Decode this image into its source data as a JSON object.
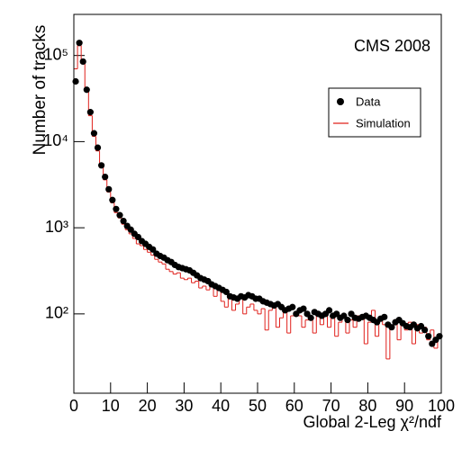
{
  "chart_data": {
    "type": "histogram",
    "ylabel": "Number of tracks",
    "xlabel": "Global 2-Leg χ²/ndf",
    "annotation": "CMS 2008",
    "log_y": true,
    "xlim": [
      0,
      100
    ],
    "ylim": [
      12,
      300000
    ],
    "xticks": [
      0,
      10,
      20,
      30,
      40,
      50,
      60,
      70,
      80,
      90,
      100
    ],
    "yticks": [
      {
        "value": 100,
        "label": "10²"
      },
      {
        "value": 1000,
        "label": "10³"
      },
      {
        "value": 10000,
        "label": "10⁴"
      },
      {
        "value": 100000,
        "label": "10⁵"
      }
    ],
    "bins": [
      0,
      1,
      2,
      3,
      4,
      5,
      6,
      7,
      8,
      9,
      10,
      11,
      12,
      13,
      14,
      15,
      16,
      17,
      18,
      19,
      20,
      21,
      22,
      23,
      24,
      25,
      26,
      27,
      28,
      29,
      30,
      31,
      32,
      33,
      34,
      35,
      36,
      37,
      38,
      39,
      40,
      41,
      42,
      43,
      44,
      45,
      46,
      47,
      48,
      49,
      50,
      51,
      52,
      53,
      54,
      55,
      56,
      57,
      58,
      59,
      60,
      61,
      62,
      63,
      64,
      65,
      66,
      67,
      68,
      69,
      70,
      71,
      72,
      73,
      74,
      75,
      76,
      77,
      78,
      79,
      80,
      81,
      82,
      83,
      84,
      85,
      86,
      87,
      88,
      89,
      90,
      91,
      92,
      93,
      94,
      95,
      96,
      97,
      98,
      99,
      100
    ],
    "series": [
      {
        "name": "Data",
        "color": "#000000",
        "style": "points",
        "values": [
          50000,
          140000,
          85000,
          40000,
          22000,
          12500,
          8500,
          5300,
          3900,
          2800,
          2100,
          1650,
          1400,
          1200,
          1050,
          950,
          850,
          780,
          700,
          650,
          600,
          560,
          500,
          470,
          450,
          420,
          400,
          370,
          350,
          340,
          330,
          320,
          300,
          280,
          260,
          250,
          240,
          220,
          210,
          200,
          190,
          180,
          160,
          155,
          150,
          160,
          155,
          165,
          160,
          150,
          150,
          140,
          135,
          130,
          125,
          130,
          120,
          110,
          115,
          120,
          100,
          110,
          115,
          100,
          90,
          105,
          100,
          95,
          100,
          110,
          95,
          100,
          90,
          95,
          85,
          100,
          90,
          88,
          92,
          95,
          90,
          85,
          80,
          88,
          92,
          75,
          70,
          80,
          85,
          78,
          72,
          70,
          75,
          68,
          72,
          65,
          55,
          45,
          50,
          55
        ]
      },
      {
        "name": "Simulation",
        "color": "#e0201b",
        "style": "step",
        "values": [
          70000,
          130000,
          80000,
          38000,
          20000,
          11500,
          7800,
          5000,
          3600,
          2600,
          1950,
          1500,
          1300,
          1100,
          950,
          850,
          750,
          650,
          620,
          560,
          520,
          480,
          430,
          400,
          380,
          330,
          310,
          290,
          300,
          260,
          250,
          260,
          230,
          240,
          200,
          210,
          190,
          220,
          160,
          190,
          140,
          120,
          160,
          110,
          130,
          150,
          100,
          120,
          130,
          110,
          100,
          115,
          65,
          110,
          120,
          70,
          90,
          105,
          60,
          95,
          100,
          95,
          70,
          85,
          90,
          60,
          100,
          75,
          95,
          70,
          90,
          55,
          80,
          100,
          60,
          85,
          70,
          95,
          90,
          45,
          80,
          110,
          55,
          90,
          75,
          30,
          70,
          85,
          50,
          80,
          65,
          80,
          45,
          75,
          60,
          70,
          50,
          65,
          40,
          55
        ]
      }
    ]
  }
}
